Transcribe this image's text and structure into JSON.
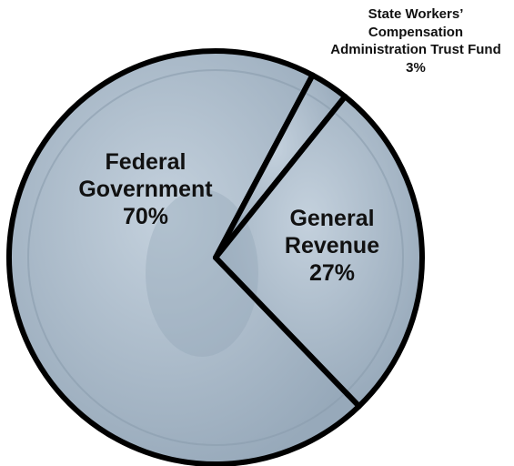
{
  "chart_data": {
    "type": "pie",
    "categories": [
      "Federal Government",
      "General Revenue",
      "State Workers’ Compensation Administration Trust Fund"
    ],
    "values": [
      70,
      27,
      3
    ],
    "value_labels": [
      "70%",
      "27%",
      "3%"
    ]
  }
}
